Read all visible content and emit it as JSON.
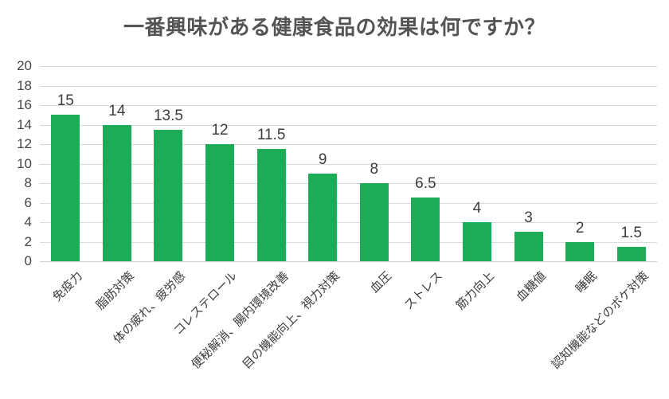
{
  "chart_data": {
    "type": "bar",
    "title": "一番興味がある健康食品の効果は何ですか？",
    "categories": [
      "免疫力",
      "脂肪対策",
      "体の疲れ、疲労感",
      "コレステロール",
      "便秘解消、腸内環境改善",
      "目の機能向上、視力対策",
      "血圧",
      "ストレス",
      "筋力向上",
      "血糖値",
      "睡眠",
      "認知機能などのボケ対策"
    ],
    "values": [
      15,
      14,
      13.5,
      12,
      11.5,
      9,
      8,
      6.5,
      4,
      3,
      2,
      1.5
    ],
    "xlabel": "",
    "ylabel": "",
    "ylim": [
      0,
      20
    ],
    "yticks": [
      0,
      2,
      4,
      6,
      8,
      10,
      12,
      14,
      16,
      18,
      20
    ],
    "grid": true,
    "legend": "none",
    "data_labels": true
  },
  "colors": {
    "bar": "#1bac55",
    "gridline": "#d9d9d9",
    "title_text": "#545454",
    "axis_text": "#454545",
    "value_label_text": "#3d3d3d",
    "background": "#ffffff"
  }
}
